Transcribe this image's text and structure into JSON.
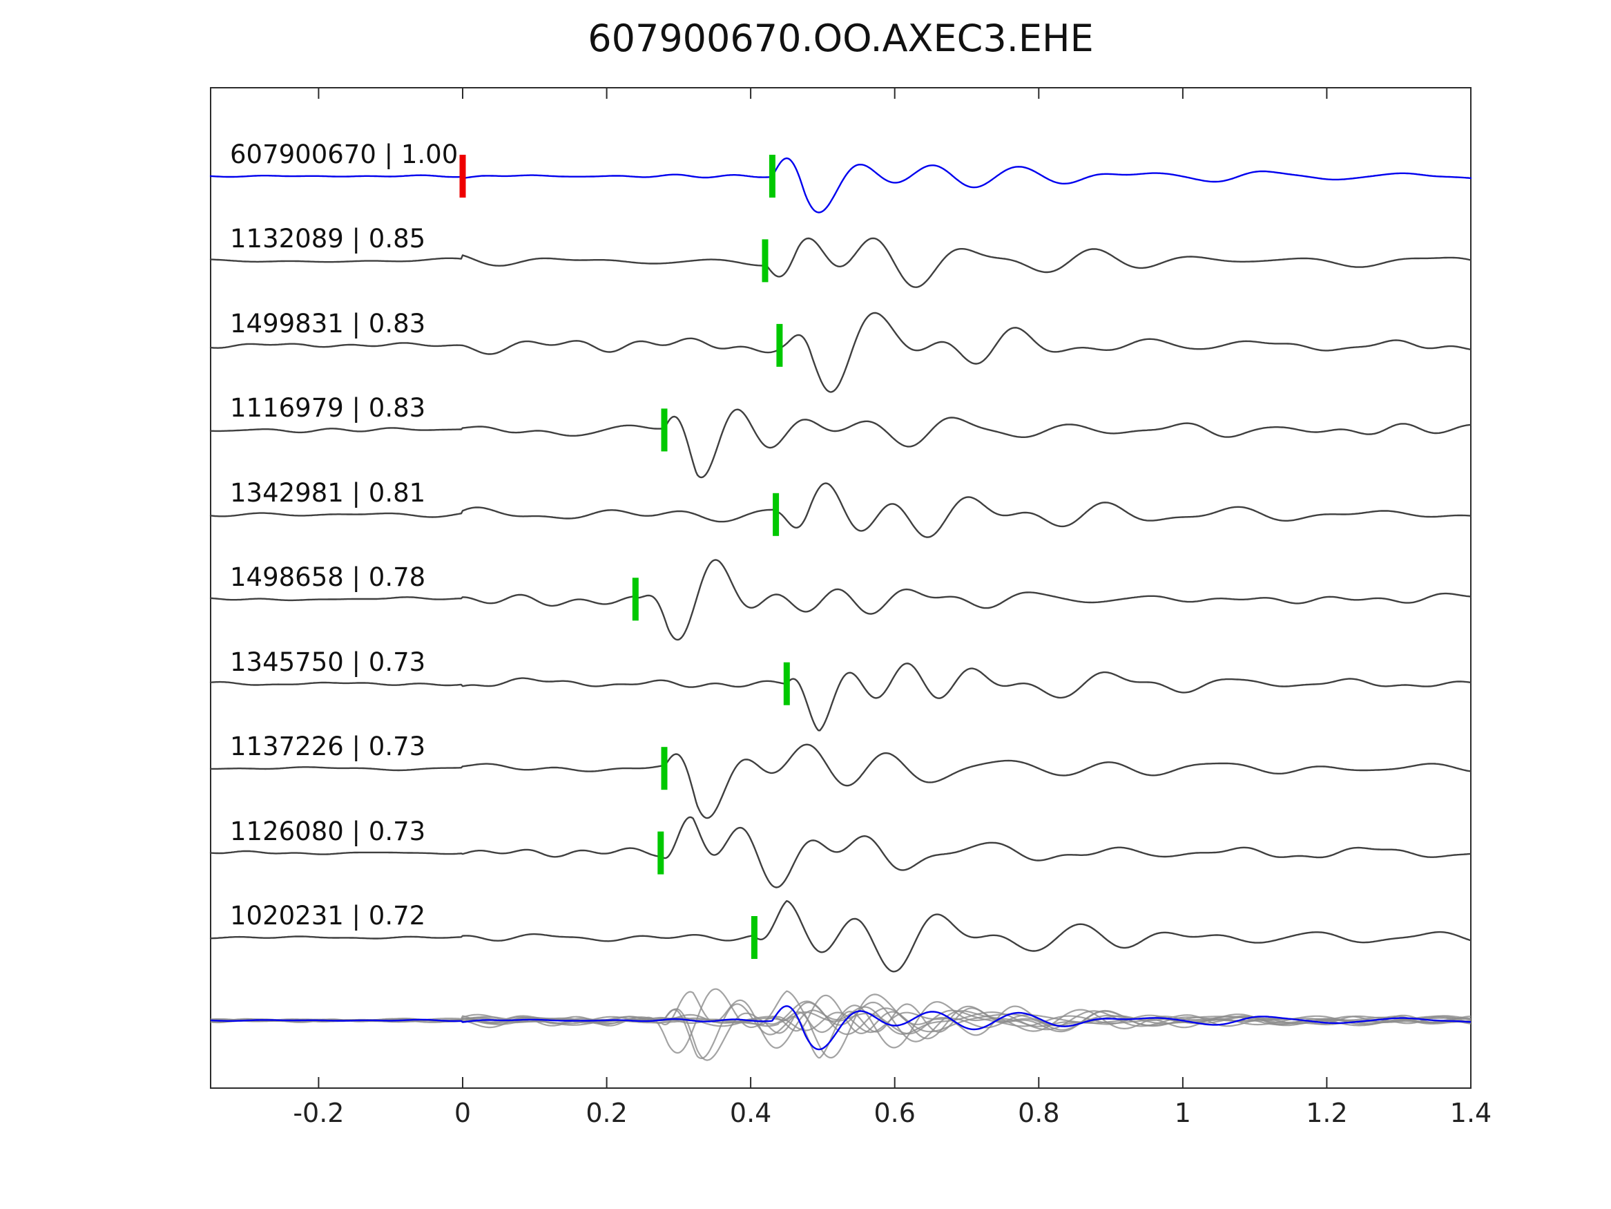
{
  "chart_data": {
    "type": "line",
    "title": "607900670.OO.AXEC3.EHE",
    "xlabel": "",
    "ylabel": "",
    "xlim": [
      -0.35,
      1.4
    ],
    "grid": false,
    "legend": "none",
    "xticks": [
      -0.2,
      0,
      0.2,
      0.4,
      0.6,
      0.8,
      1,
      1.2,
      1.4
    ],
    "xtick_labels": [
      "-0.2",
      "0",
      "0.2",
      "0.4",
      "0.6",
      "0.8",
      "1",
      "1.2",
      "1.4"
    ],
    "colors": {
      "template_trace": "#0000ee",
      "detection_trace": "#3f3f3f",
      "pick_marker": "#00c800",
      "reference_marker": "#ee0000",
      "overlay_trace": "#8c8c8c",
      "axis": "#2b2b2b"
    },
    "reference_marker_time": 0.0,
    "traces": [
      {
        "id": "607900670",
        "score": "1.00",
        "label": "607900670 | 1.00",
        "pick_time": 0.43,
        "is_template": true
      },
      {
        "id": "1132089",
        "score": "0.85",
        "label": "1132089 | 0.85",
        "pick_time": 0.42,
        "is_template": false
      },
      {
        "id": "1499831",
        "score": "0.83",
        "label": "1499831 | 0.83",
        "pick_time": 0.44,
        "is_template": false
      },
      {
        "id": "1116979",
        "score": "0.83",
        "label": "1116979 | 0.83",
        "pick_time": 0.28,
        "is_template": false
      },
      {
        "id": "1342981",
        "score": "0.81",
        "label": "1342981 | 0.81",
        "pick_time": 0.435,
        "is_template": false
      },
      {
        "id": "1498658",
        "score": "0.78",
        "label": "1498658 | 0.78",
        "pick_time": 0.24,
        "is_template": false
      },
      {
        "id": "1345750",
        "score": "0.73",
        "label": "1345750 | 0.73",
        "pick_time": 0.45,
        "is_template": false
      },
      {
        "id": "1137226",
        "score": "0.73",
        "label": "1137226 | 0.73",
        "pick_time": 0.28,
        "is_template": false
      },
      {
        "id": "1126080",
        "score": "0.73",
        "label": "1126080 | 0.73",
        "pick_time": 0.275,
        "is_template": false
      },
      {
        "id": "1020231",
        "score": "0.72",
        "label": "1020231 | 0.72",
        "pick_time": 0.405,
        "is_template": false
      }
    ],
    "overlay_row": {
      "description": "all detection traces overlaid in gray with template trace in blue"
    }
  }
}
